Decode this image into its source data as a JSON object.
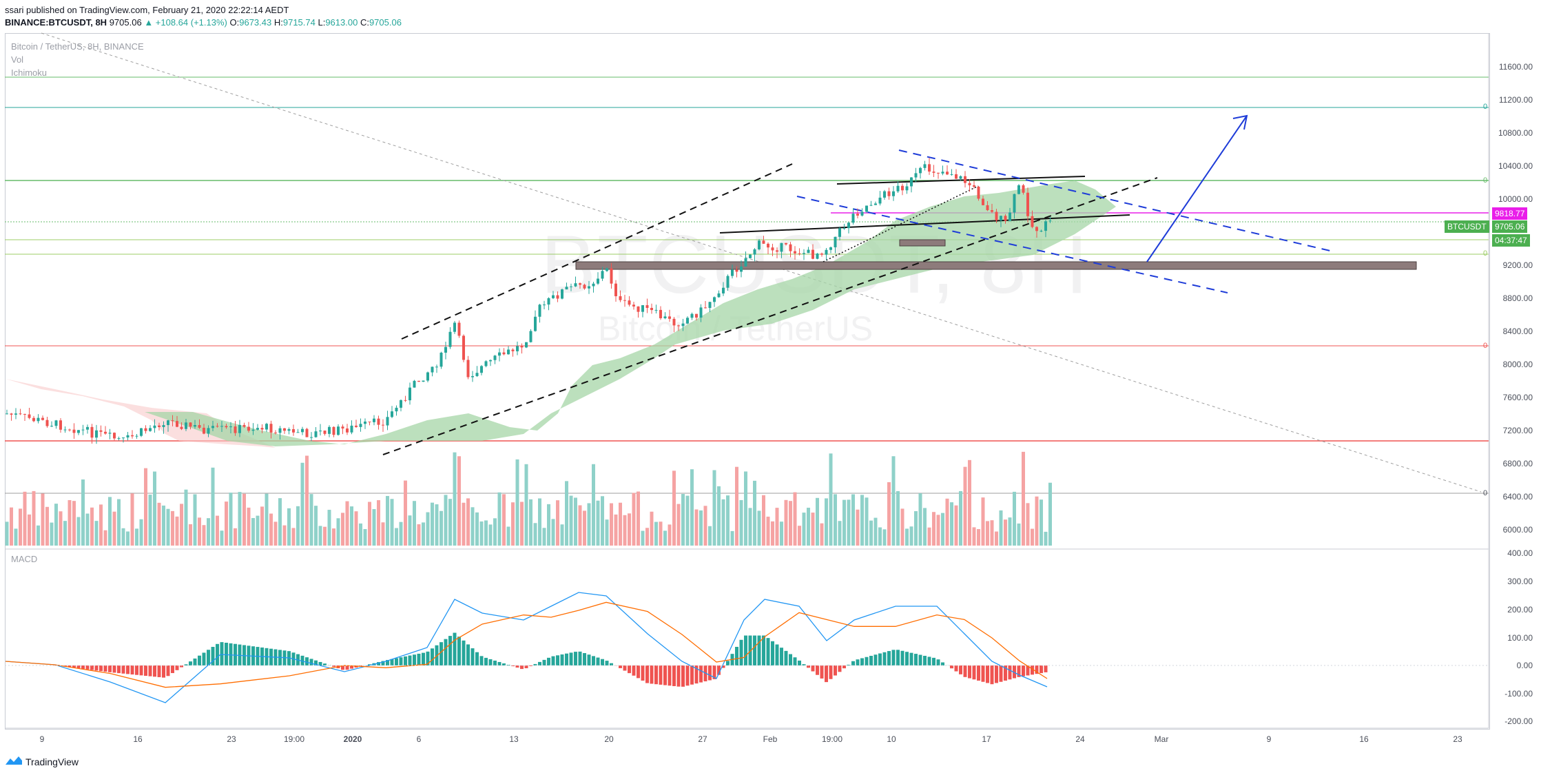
{
  "header": {
    "published": "ssari published on TradingView.com, February 21, 2020 22:22:14 AEDT",
    "symbol": "BINANCE:BTCUSDT, 8H",
    "last": "9705.06",
    "change": "▲ +108.64 (+1.13%)",
    "open_key": "O:",
    "open": "9673.43",
    "high_key": "H:",
    "high": "9715.74",
    "low_key": "L:",
    "low": "9613.00",
    "close_key": "C:",
    "close": "9705.06"
  },
  "legend": {
    "title": "Bitcoin / TetherUS, 8H, BINANCE",
    "vol": "Vol",
    "ichimoku": "Ichimoku"
  },
  "macd_label": "MACD",
  "watermark": {
    "main": "BTCUSDT, 8H",
    "sub": "Bitcoin / TetherUS"
  },
  "price_axis": {
    "ticks": [
      "11600.00",
      "11200.00",
      "10800.00",
      "10400.00",
      "10000.00",
      "9200.00",
      "8800.00",
      "8400.00",
      "8000.00",
      "7600.00",
      "7200.00",
      "6800.00",
      "6400.00",
      "6000.00"
    ],
    "tags": {
      "alert": "9818.77",
      "symbol": "BTCUSDT",
      "price": "9705.06",
      "countdown": "04:37:47"
    },
    "zero_markers": [
      "0",
      "0",
      "0",
      "0",
      "0"
    ]
  },
  "macd_axis": {
    "ticks": [
      "400.00",
      "300.00",
      "200.00",
      "100.00",
      "0.00",
      "-100.00",
      "-200.00"
    ]
  },
  "time_axis": [
    {
      "label": "9",
      "bold": false
    },
    {
      "label": "16",
      "bold": false
    },
    {
      "label": "23",
      "bold": false
    },
    {
      "label": "19:00",
      "bold": false
    },
    {
      "label": "2020",
      "bold": true
    },
    {
      "label": "6",
      "bold": false
    },
    {
      "label": "13",
      "bold": false
    },
    {
      "label": "20",
      "bold": false
    },
    {
      "label": "27",
      "bold": false
    },
    {
      "label": "Feb",
      "bold": false
    },
    {
      "label": "19:00",
      "bold": false
    },
    {
      "label": "10",
      "bold": false
    },
    {
      "label": "17",
      "bold": false
    },
    {
      "label": "24",
      "bold": false
    },
    {
      "label": "Mar",
      "bold": false
    },
    {
      "label": "9",
      "bold": false
    },
    {
      "label": "16",
      "bold": false
    },
    {
      "label": "23",
      "bold": false
    }
  ],
  "footer": {
    "brand": "TradingView",
    "icon": "tradingview-logo-icon"
  },
  "colors": {
    "up": "#26a69a",
    "down": "#ef5350",
    "accent": "#2962ff",
    "alert": "#e91ee9",
    "cloud_up": "#a5d6a7",
    "cloud_down": "#f8c9c9"
  }
}
